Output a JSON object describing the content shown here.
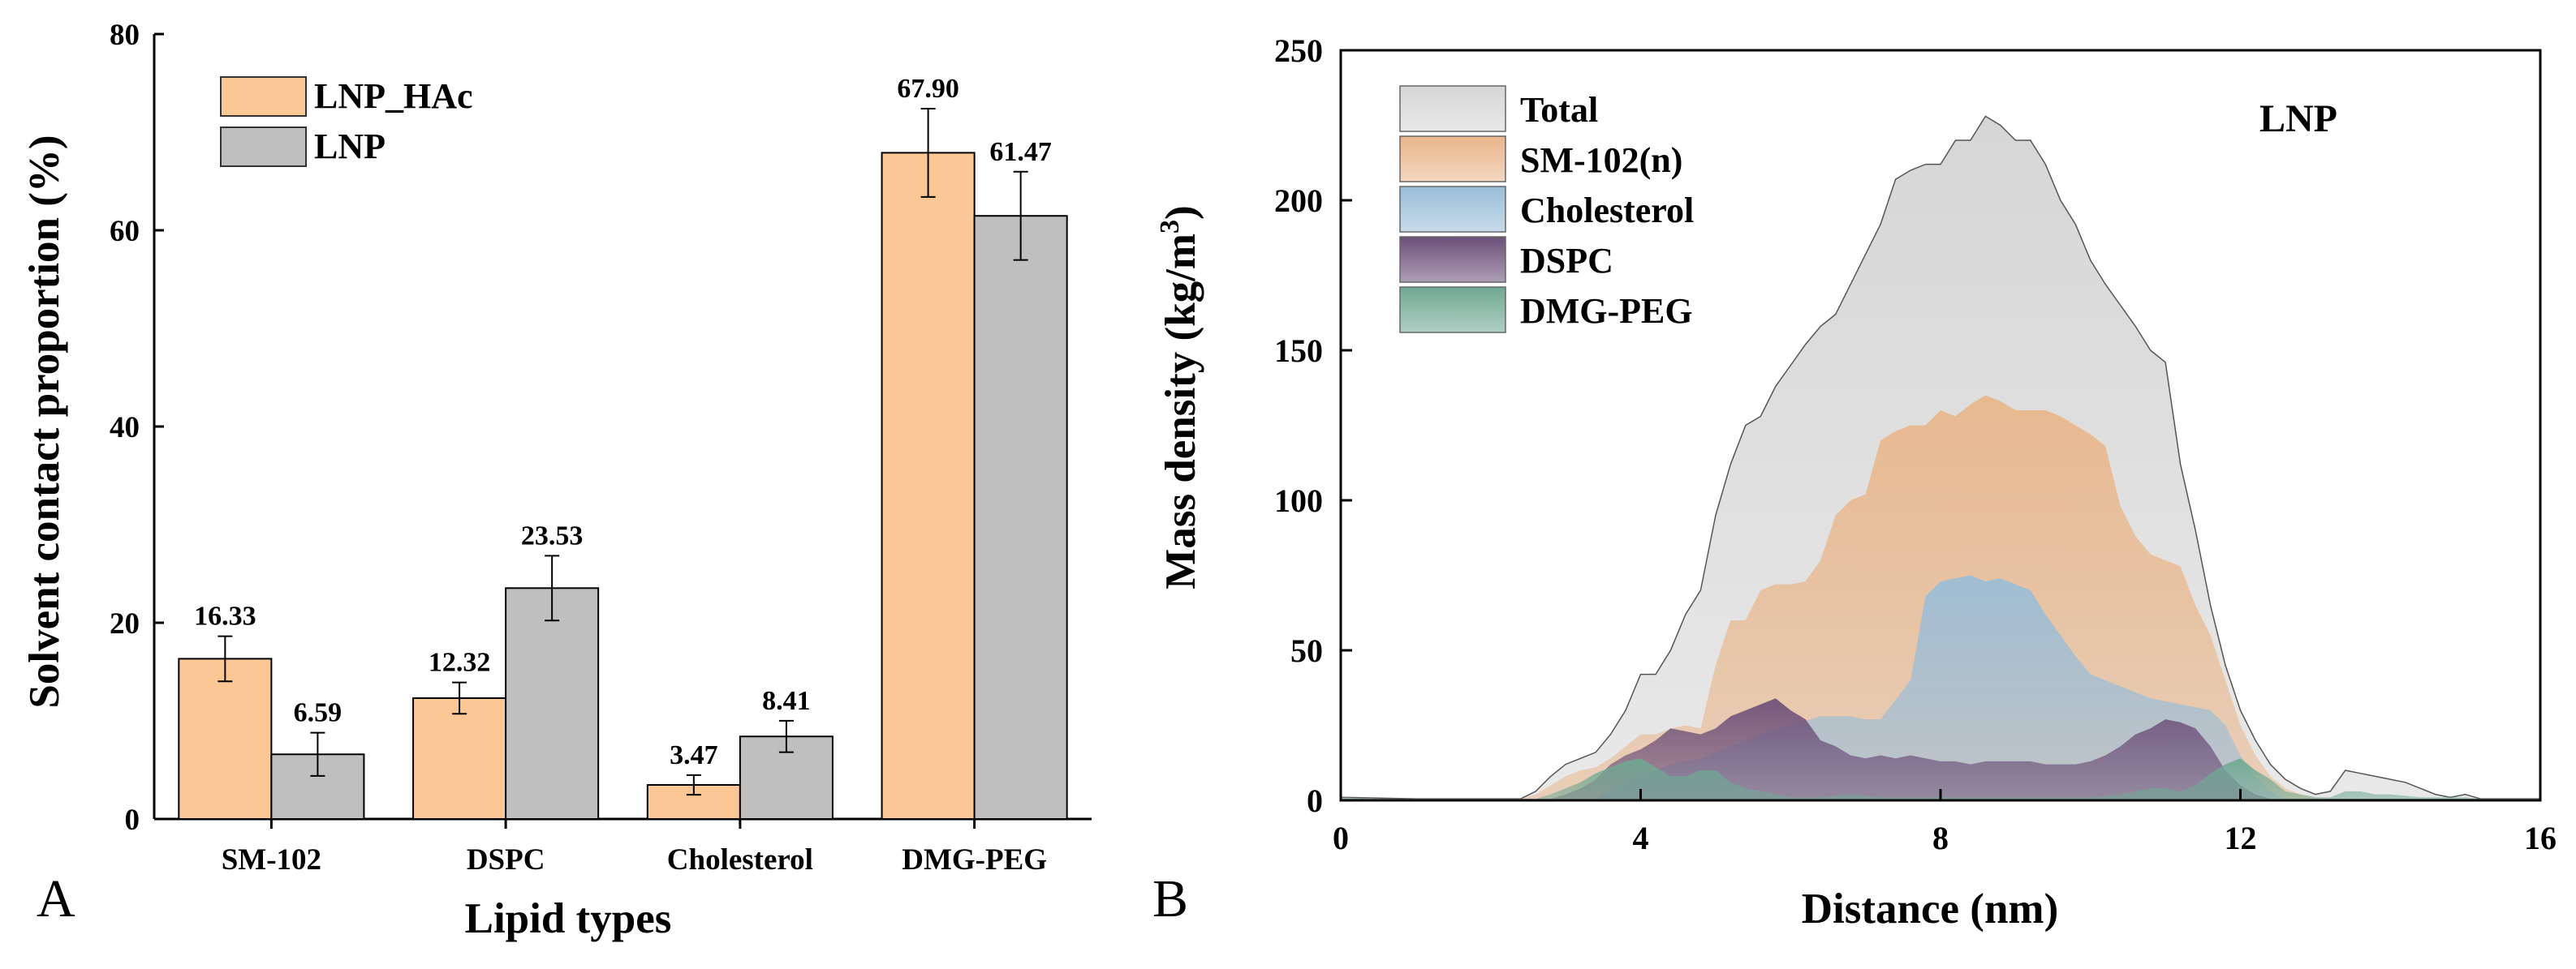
{
  "panel_labels": {
    "a": "A",
    "b": "B"
  },
  "colors": {
    "LNP_HAc": "#FBC795",
    "LNP": "#BFBFBF",
    "Total": "#D6D6D6",
    "SM-102(n)": "#E9B68A",
    "Cholesterol": "#9ABDD8",
    "DSPC": "#6B4F78",
    "DMG-PEG": "#6FA893"
  },
  "chart_data": [
    {
      "type": "bar",
      "title": "",
      "xlabel": "Lipid types",
      "ylabel": "Solvent contact proportion (%)",
      "ylim": [
        0,
        80
      ],
      "yticks": [
        "0",
        "20",
        "40",
        "60",
        "80"
      ],
      "categories": [
        "SM-102",
        "DSPC",
        "Cholesterol",
        "DMG-PEG"
      ],
      "series": [
        {
          "name": "LNP_HAc",
          "values": [
            16.33,
            12.32,
            3.47,
            67.9
          ],
          "labels": [
            "16.33",
            "12.32",
            "3.47",
            "67.90"
          ],
          "errors": [
            2.3,
            1.6,
            1.0,
            4.5
          ]
        },
        {
          "name": "LNP",
          "values": [
            6.59,
            23.53,
            8.41,
            61.47
          ],
          "labels": [
            "6.59",
            "23.53",
            "8.41",
            "61.47"
          ],
          "errors": [
            2.2,
            3.3,
            1.6,
            4.5
          ]
        }
      ],
      "legend": [
        "LNP_HAc",
        "LNP"
      ],
      "legend_position": "top-left"
    },
    {
      "type": "area",
      "title": "LNP",
      "xlabel": "Distance (nm)",
      "ylabel": "Mass density (kg/m3)",
      "xlim": [
        0,
        16
      ],
      "ylim": [
        0,
        250
      ],
      "xticks": [
        "0",
        "4",
        "8",
        "12",
        "16"
      ],
      "yticks": [
        "0",
        "50",
        "100",
        "150",
        "200",
        "250"
      ],
      "legend": [
        "Total",
        "SM-102(n)",
        "Cholesterol",
        "DSPC",
        "DMG-PEG"
      ],
      "legend_position": "top-left",
      "series": [
        {
          "name": "Total",
          "points": [
            [
              0,
              1
            ],
            [
              1,
              0.5
            ],
            [
              2,
              0.5
            ],
            [
              2.4,
              0.5
            ],
            [
              2.6,
              3
            ],
            [
              2.8,
              8
            ],
            [
              3,
              12
            ],
            [
              3.2,
              14
            ],
            [
              3.4,
              16
            ],
            [
              3.6,
              22
            ],
            [
              3.8,
              30
            ],
            [
              4,
              42
            ],
            [
              4.2,
              42
            ],
            [
              4.4,
              50
            ],
            [
              4.6,
              62
            ],
            [
              4.8,
              70
            ],
            [
              5,
              95
            ],
            [
              5.2,
              112
            ],
            [
              5.4,
              125
            ],
            [
              5.6,
              128
            ],
            [
              5.8,
              138
            ],
            [
              6,
              145
            ],
            [
              6.2,
              152
            ],
            [
              6.4,
              158
            ],
            [
              6.6,
              162
            ],
            [
              6.8,
              172
            ],
            [
              7,
              182
            ],
            [
              7.2,
              192
            ],
            [
              7.4,
              207
            ],
            [
              7.6,
              210
            ],
            [
              7.8,
              212
            ],
            [
              8,
              212
            ],
            [
              8.2,
              220
            ],
            [
              8.4,
              220
            ],
            [
              8.6,
              228
            ],
            [
              8.8,
              225
            ],
            [
              9,
              220
            ],
            [
              9.2,
              220
            ],
            [
              9.4,
              212
            ],
            [
              9.6,
              200
            ],
            [
              9.8,
              192
            ],
            [
              10,
              180
            ],
            [
              10.2,
              172
            ],
            [
              10.4,
              165
            ],
            [
              10.6,
              158
            ],
            [
              10.8,
              150
            ],
            [
              11,
              146
            ],
            [
              11.2,
              112
            ],
            [
              11.4,
              90
            ],
            [
              11.6,
              65
            ],
            [
              11.8,
              45
            ],
            [
              12,
              30
            ],
            [
              12.2,
              20
            ],
            [
              12.4,
              12
            ],
            [
              12.6,
              7
            ],
            [
              12.8,
              4
            ],
            [
              13,
              2
            ],
            [
              13.2,
              3
            ],
            [
              13.4,
              10
            ],
            [
              13.6,
              9
            ],
            [
              13.8,
              8
            ],
            [
              14,
              7
            ],
            [
              14.2,
              6
            ],
            [
              14.4,
              4
            ],
            [
              14.6,
              2
            ],
            [
              14.8,
              1
            ],
            [
              15,
              2
            ],
            [
              15.2,
              0.5
            ],
            [
              16,
              0.5
            ]
          ]
        },
        {
          "name": "SM-102(n)",
          "points": [
            [
              0,
              0.5
            ],
            [
              2.4,
              0.5
            ],
            [
              2.6,
              2
            ],
            [
              2.8,
              5
            ],
            [
              3,
              8
            ],
            [
              3.2,
              10
            ],
            [
              3.4,
              11
            ],
            [
              3.6,
              14
            ],
            [
              3.8,
              18
            ],
            [
              4,
              22
            ],
            [
              4.2,
              22
            ],
            [
              4.4,
              24
            ],
            [
              4.6,
              25
            ],
            [
              4.8,
              24
            ],
            [
              5,
              45
            ],
            [
              5.2,
              60
            ],
            [
              5.4,
              60
            ],
            [
              5.6,
              70
            ],
            [
              5.8,
              72
            ],
            [
              6,
              72
            ],
            [
              6.2,
              73
            ],
            [
              6.4,
              80
            ],
            [
              6.6,
              95
            ],
            [
              6.8,
              100
            ],
            [
              7,
              102
            ],
            [
              7.2,
              120
            ],
            [
              7.4,
              123
            ],
            [
              7.6,
              125
            ],
            [
              7.8,
              125
            ],
            [
              8,
              130
            ],
            [
              8.2,
              128
            ],
            [
              8.4,
              132
            ],
            [
              8.6,
              135
            ],
            [
              8.8,
              133
            ],
            [
              9,
              130
            ],
            [
              9.2,
              130
            ],
            [
              9.4,
              130
            ],
            [
              9.6,
              128
            ],
            [
              9.8,
              125
            ],
            [
              10,
              122
            ],
            [
              10.2,
              118
            ],
            [
              10.4,
              98
            ],
            [
              10.6,
              88
            ],
            [
              10.8,
              82
            ],
            [
              11,
              80
            ],
            [
              11.2,
              78
            ],
            [
              11.4,
              65
            ],
            [
              11.6,
              55
            ],
            [
              11.8,
              40
            ],
            [
              12,
              25
            ],
            [
              12.2,
              15
            ],
            [
              12.4,
              8
            ],
            [
              12.6,
              4
            ],
            [
              12.8,
              2
            ],
            [
              13,
              1
            ],
            [
              13.2,
              0.5
            ],
            [
              16,
              0.5
            ]
          ]
        },
        {
          "name": "Cholesterol",
          "points": [
            [
              0,
              0.5
            ],
            [
              3.4,
              0.5
            ],
            [
              3.6,
              3
            ],
            [
              4,
              8
            ],
            [
              4.4,
              12
            ],
            [
              4.8,
              14
            ],
            [
              5.2,
              18
            ],
            [
              5.6,
              22
            ],
            [
              6,
              25
            ],
            [
              6.4,
              28
            ],
            [
              6.8,
              28
            ],
            [
              7,
              27
            ],
            [
              7.2,
              27
            ],
            [
              7.6,
              40
            ],
            [
              7.8,
              68
            ],
            [
              8,
              73
            ],
            [
              8.2,
              74
            ],
            [
              8.4,
              75
            ],
            [
              8.6,
              73
            ],
            [
              8.8,
              74
            ],
            [
              9,
              72
            ],
            [
              9.2,
              70
            ],
            [
              9.4,
              62
            ],
            [
              9.6,
              55
            ],
            [
              9.8,
              48
            ],
            [
              10,
              42
            ],
            [
              10.2,
              40
            ],
            [
              10.4,
              38
            ],
            [
              10.6,
              36
            ],
            [
              10.8,
              34
            ],
            [
              11,
              33
            ],
            [
              11.2,
              32
            ],
            [
              11.4,
              31
            ],
            [
              11.6,
              30
            ],
            [
              11.8,
              25
            ],
            [
              12,
              15
            ],
            [
              12.2,
              8
            ],
            [
              12.4,
              3
            ],
            [
              12.6,
              0.5
            ],
            [
              16,
              0.5
            ]
          ]
        },
        {
          "name": "DSPC",
          "points": [
            [
              0,
              0.5
            ],
            [
              2.8,
              0.5
            ],
            [
              3,
              2
            ],
            [
              3.2,
              4
            ],
            [
              3.4,
              7
            ],
            [
              3.6,
              12
            ],
            [
              3.8,
              15
            ],
            [
              4,
              17
            ],
            [
              4.2,
              20
            ],
            [
              4.4,
              24
            ],
            [
              4.6,
              23
            ],
            [
              4.8,
              22
            ],
            [
              5,
              24
            ],
            [
              5.2,
              28
            ],
            [
              5.4,
              30
            ],
            [
              5.6,
              32
            ],
            [
              5.8,
              34
            ],
            [
              6,
              30
            ],
            [
              6.2,
              27
            ],
            [
              6.4,
              20
            ],
            [
              6.6,
              18
            ],
            [
              6.8,
              15
            ],
            [
              7,
              14
            ],
            [
              7.2,
              15
            ],
            [
              7.4,
              14
            ],
            [
              7.6,
              15
            ],
            [
              7.8,
              14
            ],
            [
              8,
              13
            ],
            [
              8.2,
              13
            ],
            [
              8.4,
              12
            ],
            [
              8.6,
              13
            ],
            [
              8.8,
              13
            ],
            [
              9,
              13
            ],
            [
              9.2,
              13
            ],
            [
              9.4,
              12
            ],
            [
              9.6,
              12
            ],
            [
              9.8,
              12
            ],
            [
              10,
              13
            ],
            [
              10.2,
              15
            ],
            [
              10.4,
              18
            ],
            [
              10.6,
              22
            ],
            [
              10.8,
              24
            ],
            [
              11,
              27
            ],
            [
              11.2,
              26
            ],
            [
              11.4,
              24
            ],
            [
              11.6,
              18
            ],
            [
              11.8,
              10
            ],
            [
              12,
              5
            ],
            [
              12.2,
              2
            ],
            [
              12.4,
              0.5
            ],
            [
              16,
              0.5
            ]
          ]
        },
        {
          "name": "DMG-PEG",
          "points": [
            [
              0,
              1
            ],
            [
              0.4,
              0.5
            ],
            [
              2.6,
              0.5
            ],
            [
              2.8,
              2
            ],
            [
              3,
              4
            ],
            [
              3.2,
              6
            ],
            [
              3.4,
              9
            ],
            [
              3.6,
              11
            ],
            [
              3.8,
              13
            ],
            [
              4,
              14
            ],
            [
              4.2,
              11
            ],
            [
              4.4,
              8
            ],
            [
              4.6,
              8
            ],
            [
              4.8,
              10
            ],
            [
              5,
              10
            ],
            [
              5.2,
              6
            ],
            [
              5.4,
              4
            ],
            [
              5.6,
              3
            ],
            [
              5.8,
              2
            ],
            [
              6,
              1
            ],
            [
              6.4,
              1
            ],
            [
              6.8,
              2
            ],
            [
              7.2,
              1
            ],
            [
              8,
              1
            ],
            [
              9,
              1
            ],
            [
              10,
              1
            ],
            [
              10.4,
              2
            ],
            [
              10.8,
              4
            ],
            [
              11,
              4
            ],
            [
              11.2,
              3
            ],
            [
              11.4,
              5
            ],
            [
              11.6,
              9
            ],
            [
              11.8,
              12
            ],
            [
              12,
              14
            ],
            [
              12.2,
              10
            ],
            [
              12.4,
              7
            ],
            [
              12.6,
              3
            ],
            [
              12.8,
              2
            ],
            [
              13,
              1
            ],
            [
              13.2,
              1
            ],
            [
              13.4,
              3
            ],
            [
              13.6,
              3
            ],
            [
              13.8,
              2
            ],
            [
              14,
              2
            ],
            [
              14.4,
              1
            ],
            [
              15,
              1
            ],
            [
              15.2,
              0.5
            ],
            [
              16,
              0.5
            ]
          ]
        }
      ]
    }
  ]
}
